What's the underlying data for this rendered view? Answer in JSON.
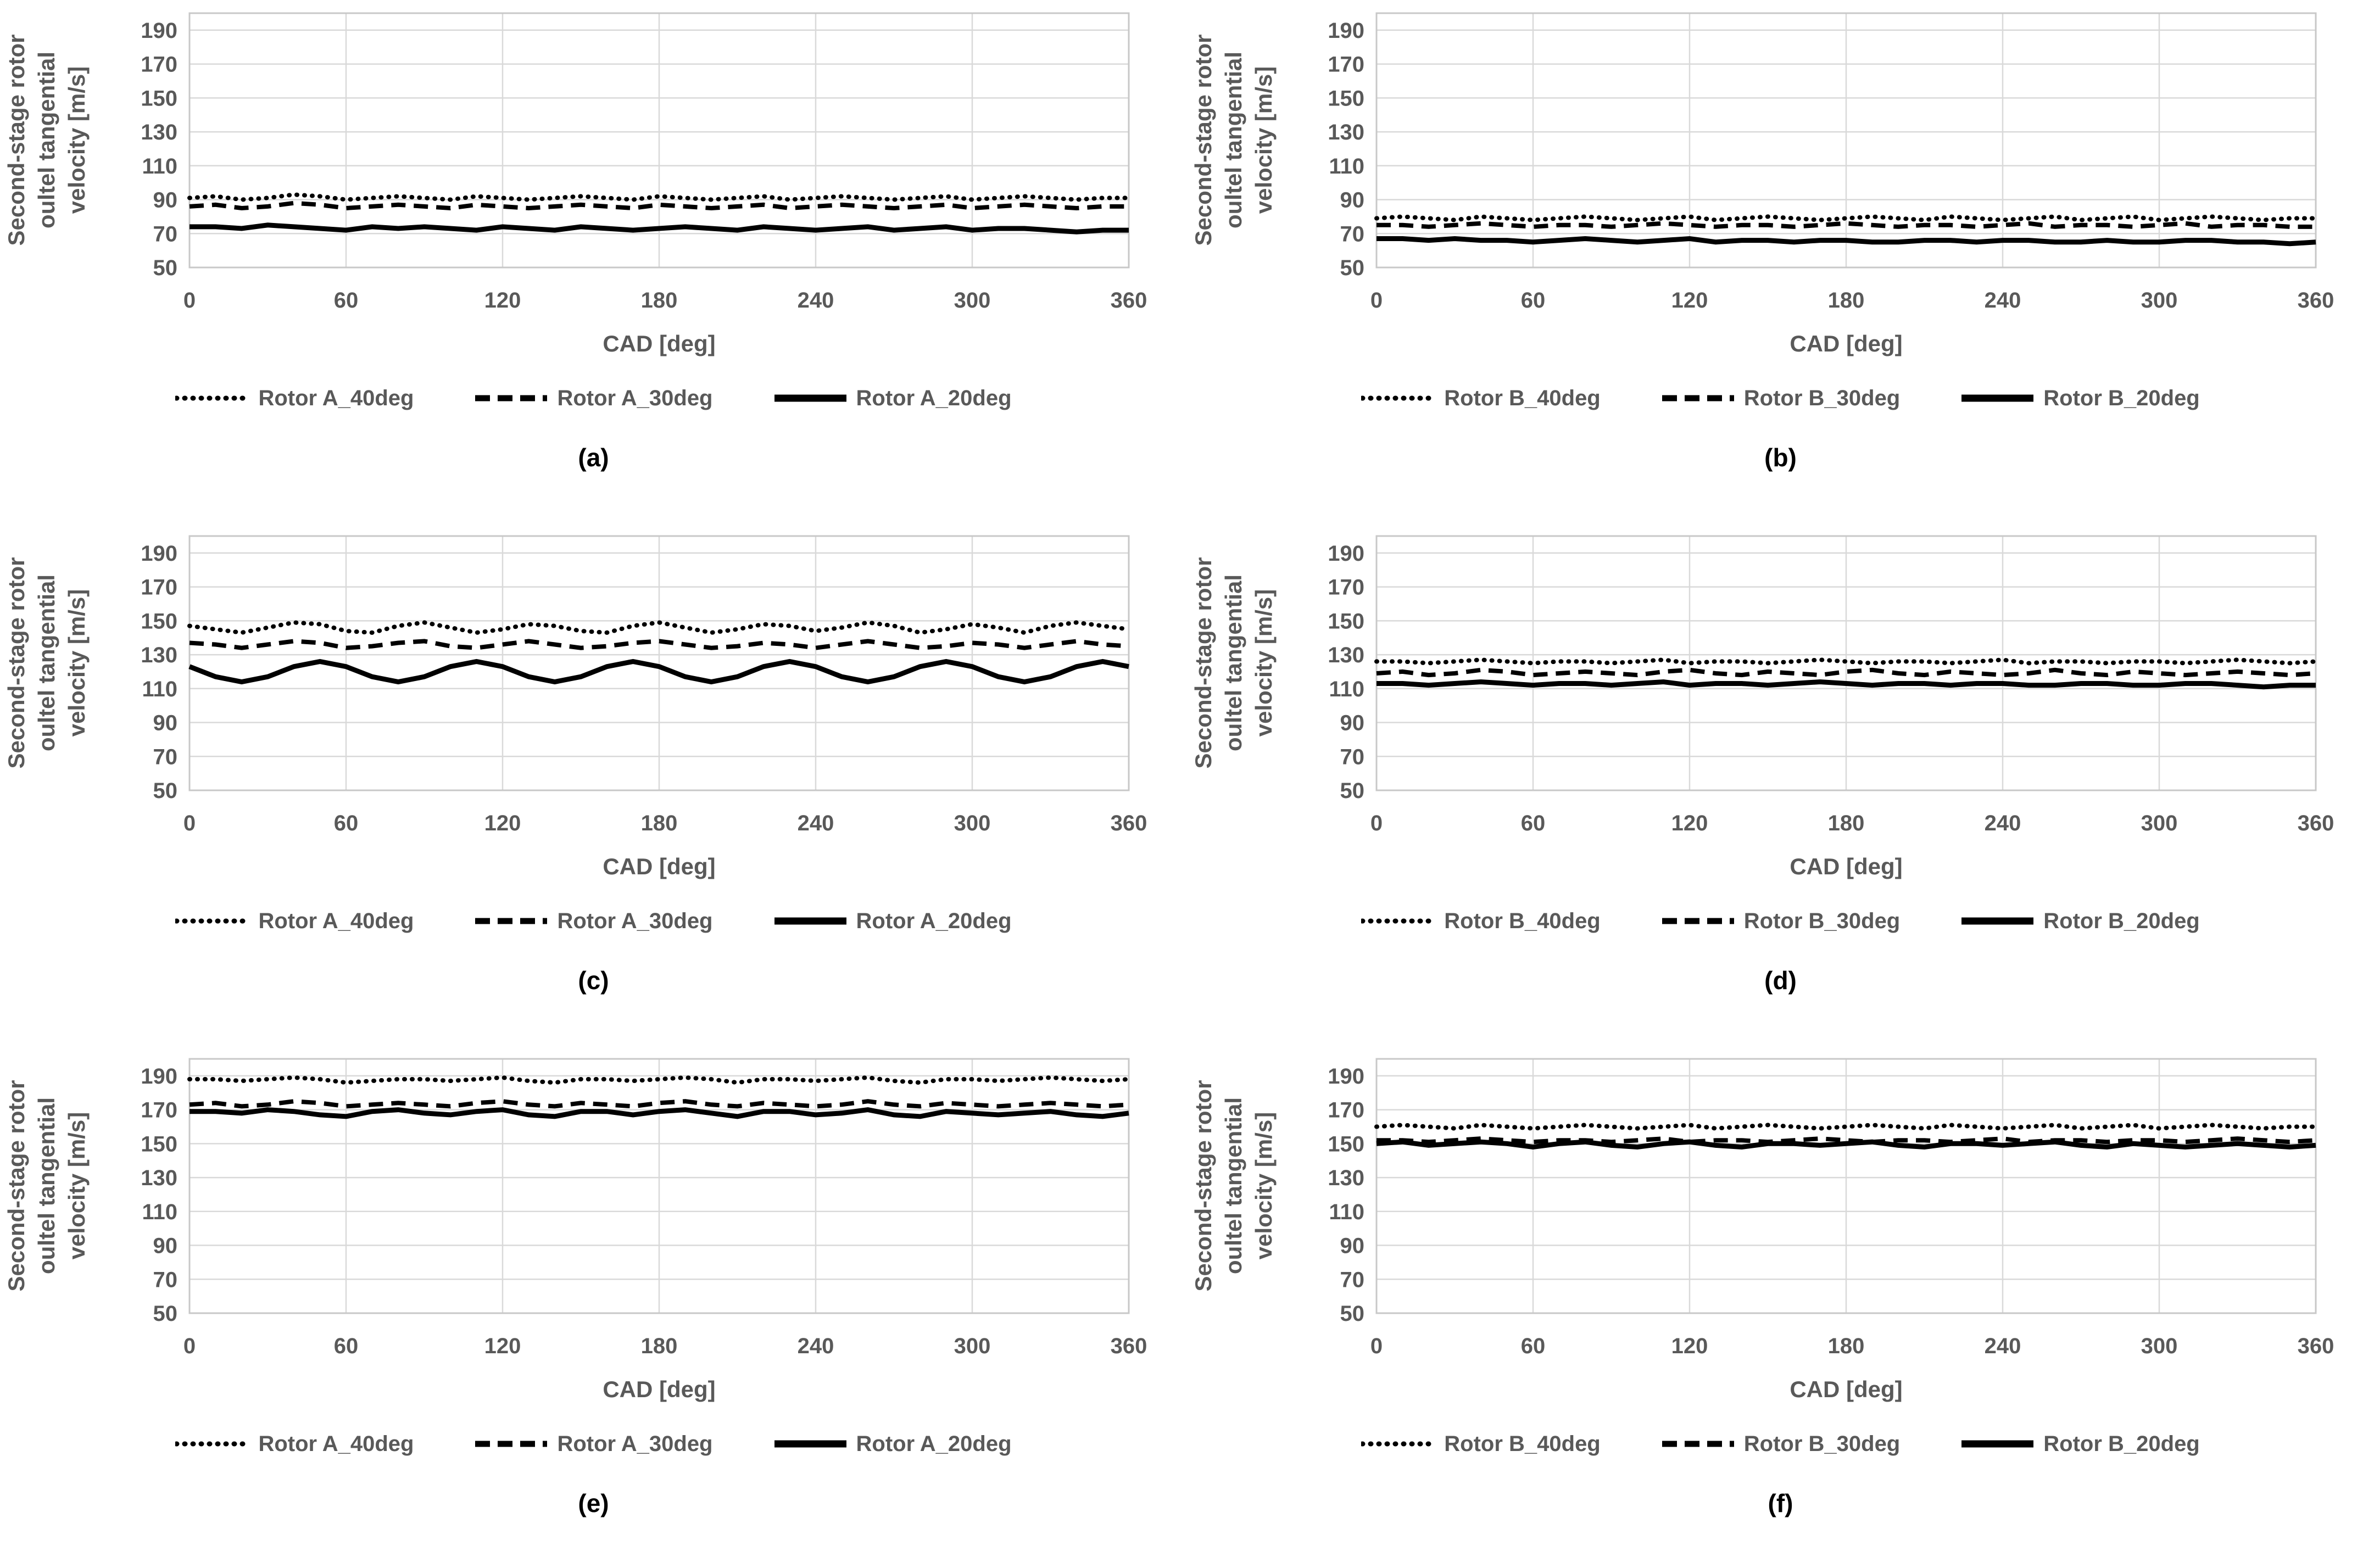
{
  "page": {
    "background": "#ffffff"
  },
  "axis": {
    "ylabel_lines": [
      "Second-stage rotor",
      "oultel tangential",
      "velocity [m/s]"
    ],
    "xlabel": "CAD [deg]",
    "x_ticks": [
      0,
      60,
      120,
      180,
      240,
      300,
      360
    ],
    "y_ticks": [
      190,
      170,
      150,
      130,
      110,
      90,
      70,
      50
    ],
    "xlim": [
      0,
      360
    ],
    "ylim": [
      50,
      200
    ],
    "grid": true,
    "legend_position": "bottom",
    "text_color": "#595959",
    "grid_color": "#d9d9d9",
    "border_color": "#c8c8c8",
    "line_color": "#000000"
  },
  "chart_data": [
    {
      "type": "line",
      "caption": "(a)",
      "xlabel": "CAD [deg]",
      "x_start": 0,
      "x_step": 10,
      "series": [
        {
          "name": "Rotor A_40deg",
          "style": "dotted",
          "values": [
            91,
            92,
            90,
            91,
            93,
            92,
            90,
            91,
            92,
            91,
            90,
            92,
            91,
            90,
            91,
            92,
            91,
            90,
            92,
            91,
            90,
            91,
            92,
            90,
            91,
            92,
            91,
            90,
            91,
            92,
            90,
            91,
            92,
            91,
            90,
            91,
            91
          ]
        },
        {
          "name": "Rotor A_30deg",
          "style": "dashed",
          "values": [
            86,
            87,
            85,
            86,
            88,
            87,
            85,
            86,
            87,
            86,
            85,
            87,
            86,
            85,
            86,
            87,
            86,
            85,
            87,
            86,
            85,
            86,
            87,
            85,
            86,
            87,
            86,
            85,
            86,
            87,
            85,
            86,
            87,
            86,
            85,
            86,
            86
          ]
        },
        {
          "name": "Rotor A_20deg",
          "style": "solid",
          "values": [
            74,
            74,
            73,
            75,
            74,
            73,
            72,
            74,
            73,
            74,
            73,
            72,
            74,
            73,
            72,
            74,
            73,
            72,
            73,
            74,
            73,
            72,
            74,
            73,
            72,
            73,
            74,
            72,
            73,
            74,
            72,
            73,
            73,
            72,
            71,
            72,
            72
          ]
        }
      ]
    },
    {
      "type": "line",
      "caption": "(b)",
      "xlabel": "CAD [deg]",
      "x_start": 0,
      "x_step": 10,
      "series": [
        {
          "name": "Rotor B_40deg",
          "style": "dotted",
          "values": [
            79,
            80,
            79,
            78,
            80,
            79,
            78,
            79,
            80,
            79,
            78,
            79,
            80,
            78,
            79,
            80,
            79,
            78,
            79,
            80,
            79,
            78,
            80,
            79,
            78,
            79,
            80,
            78,
            79,
            80,
            78,
            79,
            80,
            79,
            78,
            79,
            79
          ]
        },
        {
          "name": "Rotor B_30deg",
          "style": "dashed",
          "values": [
            75,
            75,
            74,
            75,
            76,
            75,
            74,
            75,
            75,
            74,
            75,
            76,
            75,
            74,
            75,
            75,
            74,
            75,
            76,
            75,
            74,
            75,
            75,
            74,
            75,
            76,
            74,
            75,
            75,
            74,
            75,
            76,
            74,
            75,
            75,
            74,
            74
          ]
        },
        {
          "name": "Rotor B_20deg",
          "style": "solid",
          "values": [
            67,
            67,
            66,
            67,
            66,
            66,
            65,
            66,
            67,
            66,
            65,
            66,
            67,
            65,
            66,
            66,
            65,
            66,
            66,
            65,
            65,
            66,
            66,
            65,
            66,
            66,
            65,
            65,
            66,
            65,
            65,
            66,
            66,
            65,
            65,
            64,
            65
          ]
        }
      ]
    },
    {
      "type": "line",
      "caption": "(c)",
      "xlabel": "CAD [deg]",
      "x_start": 0,
      "x_step": 10,
      "series": [
        {
          "name": "Rotor A_40deg",
          "style": "dotted",
          "values": [
            147,
            145,
            143,
            146,
            149,
            148,
            144,
            143,
            147,
            149,
            146,
            143,
            145,
            148,
            147,
            144,
            143,
            147,
            149,
            146,
            143,
            145,
            148,
            147,
            144,
            146,
            149,
            147,
            143,
            145,
            148,
            146,
            143,
            147,
            149,
            147,
            145
          ]
        },
        {
          "name": "Rotor A_30deg",
          "style": "dashed",
          "values": [
            137,
            136,
            134,
            136,
            138,
            137,
            134,
            135,
            137,
            138,
            135,
            134,
            136,
            138,
            136,
            134,
            135,
            137,
            138,
            136,
            134,
            135,
            137,
            136,
            134,
            136,
            138,
            136,
            134,
            135,
            137,
            136,
            134,
            136,
            138,
            136,
            135
          ]
        },
        {
          "name": "Rotor A_20deg",
          "style": "solid",
          "values": [
            123,
            117,
            114,
            117,
            123,
            126,
            123,
            117,
            114,
            117,
            123,
            126,
            123,
            117,
            114,
            117,
            123,
            126,
            123,
            117,
            114,
            117,
            123,
            126,
            123,
            117,
            114,
            117,
            123,
            126,
            123,
            117,
            114,
            117,
            123,
            126,
            123
          ]
        }
      ]
    },
    {
      "type": "line",
      "caption": "(d)",
      "xlabel": "CAD [deg]",
      "x_start": 0,
      "x_step": 10,
      "series": [
        {
          "name": "Rotor B_40deg",
          "style": "dotted",
          "values": [
            126,
            126,
            125,
            126,
            127,
            126,
            125,
            126,
            126,
            125,
            126,
            127,
            125,
            126,
            126,
            125,
            126,
            127,
            126,
            125,
            126,
            126,
            125,
            126,
            127,
            125,
            126,
            126,
            125,
            126,
            126,
            125,
            126,
            127,
            126,
            125,
            126
          ]
        },
        {
          "name": "Rotor B_30deg",
          "style": "dashed",
          "values": [
            119,
            120,
            118,
            119,
            121,
            120,
            118,
            119,
            120,
            119,
            118,
            120,
            121,
            119,
            118,
            120,
            119,
            118,
            120,
            121,
            119,
            118,
            120,
            119,
            118,
            119,
            121,
            119,
            118,
            120,
            119,
            118,
            119,
            120,
            119,
            118,
            119
          ]
        },
        {
          "name": "Rotor B_20deg",
          "style": "solid",
          "values": [
            113,
            113,
            112,
            113,
            114,
            113,
            112,
            113,
            113,
            112,
            113,
            114,
            112,
            113,
            113,
            112,
            113,
            114,
            113,
            112,
            113,
            113,
            112,
            113,
            113,
            112,
            112,
            113,
            113,
            112,
            112,
            113,
            113,
            112,
            111,
            112,
            112
          ]
        }
      ]
    },
    {
      "type": "line",
      "caption": "(e)",
      "xlabel": "CAD [deg]",
      "x_start": 0,
      "x_step": 10,
      "series": [
        {
          "name": "Rotor A_40deg",
          "style": "dotted",
          "values": [
            188,
            188,
            187,
            188,
            189,
            188,
            186,
            187,
            188,
            188,
            187,
            188,
            189,
            187,
            186,
            188,
            188,
            187,
            188,
            189,
            188,
            186,
            188,
            188,
            187,
            188,
            189,
            187,
            186,
            188,
            188,
            187,
            188,
            189,
            188,
            187,
            188
          ]
        },
        {
          "name": "Rotor A_30deg",
          "style": "dashed",
          "values": [
            173,
            174,
            172,
            173,
            175,
            174,
            172,
            173,
            174,
            173,
            172,
            174,
            175,
            173,
            172,
            174,
            173,
            172,
            174,
            175,
            173,
            172,
            174,
            173,
            172,
            173,
            175,
            173,
            172,
            174,
            173,
            172,
            173,
            174,
            173,
            172,
            173
          ]
        },
        {
          "name": "Rotor A_20deg",
          "style": "solid",
          "values": [
            169,
            169,
            168,
            170,
            169,
            167,
            166,
            169,
            170,
            168,
            167,
            169,
            170,
            167,
            166,
            169,
            169,
            167,
            169,
            170,
            168,
            166,
            169,
            169,
            167,
            168,
            170,
            167,
            166,
            169,
            168,
            167,
            168,
            169,
            167,
            166,
            168
          ]
        }
      ]
    },
    {
      "type": "line",
      "caption": "(f)",
      "xlabel": "CAD [deg]",
      "x_start": 0,
      "x_step": 10,
      "series": [
        {
          "name": "Rotor B_40deg",
          "style": "dotted",
          "values": [
            160,
            161,
            160,
            159,
            161,
            160,
            159,
            160,
            161,
            160,
            159,
            160,
            161,
            159,
            160,
            161,
            160,
            159,
            160,
            161,
            160,
            159,
            161,
            160,
            159,
            160,
            161,
            159,
            160,
            161,
            159,
            160,
            161,
            160,
            159,
            160,
            160
          ]
        },
        {
          "name": "Rotor B_30deg",
          "style": "dashed",
          "values": [
            152,
            152,
            151,
            152,
            153,
            152,
            151,
            152,
            152,
            151,
            152,
            153,
            151,
            152,
            152,
            151,
            152,
            153,
            152,
            151,
            152,
            152,
            151,
            152,
            153,
            151,
            152,
            152,
            151,
            152,
            152,
            151,
            152,
            153,
            152,
            151,
            152
          ]
        },
        {
          "name": "Rotor B_20deg",
          "style": "solid",
          "values": [
            150,
            151,
            149,
            150,
            151,
            150,
            148,
            150,
            151,
            149,
            148,
            150,
            151,
            149,
            148,
            150,
            150,
            149,
            150,
            151,
            149,
            148,
            150,
            150,
            149,
            150,
            151,
            149,
            148,
            150,
            149,
            148,
            149,
            150,
            149,
            148,
            149
          ]
        }
      ]
    }
  ]
}
